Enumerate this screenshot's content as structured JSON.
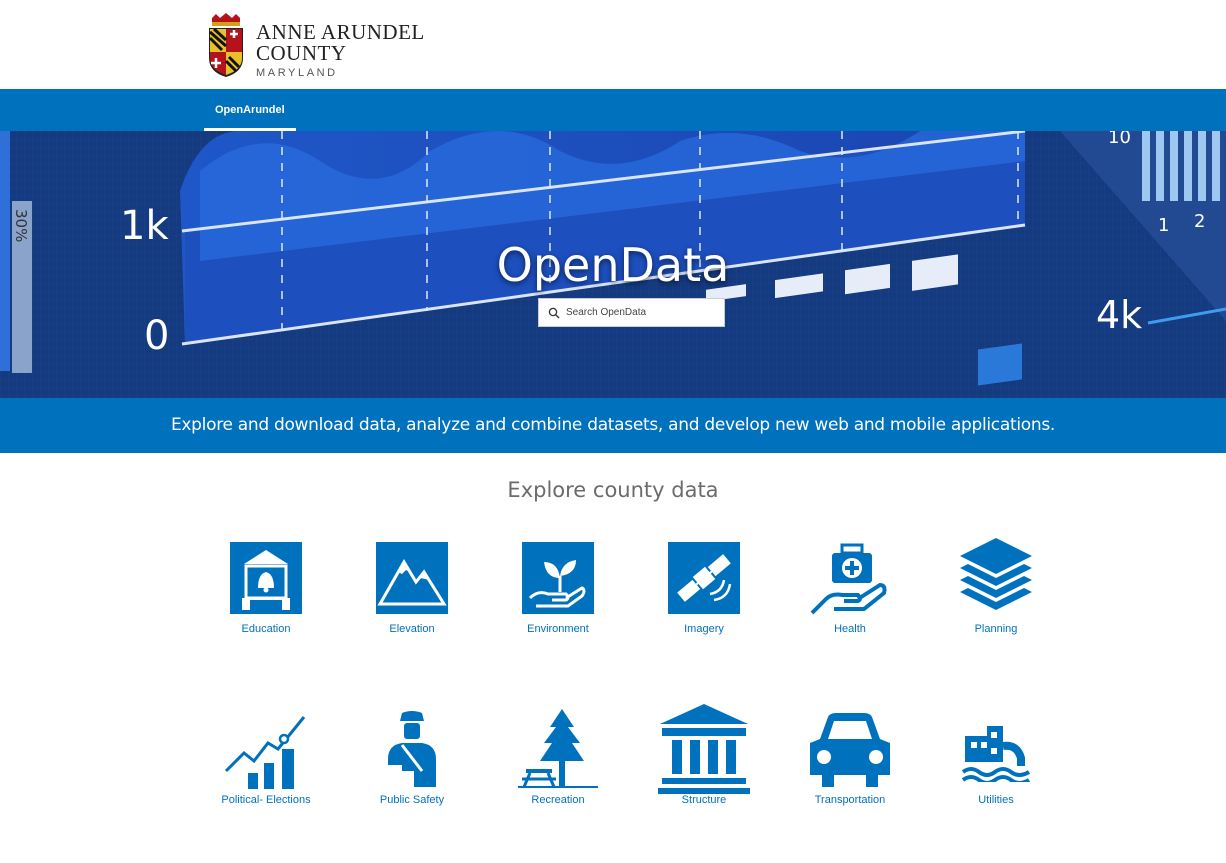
{
  "header": {
    "logo_line1": "ANNE ARUNDEL",
    "logo_line2": "COUNTY",
    "logo_line3": "MARYLAND"
  },
  "nav": {
    "tab_label": "OpenArundel"
  },
  "hero": {
    "title": "OpenData",
    "search_placeholder": "Search OpenData",
    "chart_labels": {
      "y_1k": "1k",
      "y_0": "0",
      "pct": "30%",
      "x_1": "1",
      "x_2": "2",
      "val_4k": "4k",
      "val_10": "10"
    }
  },
  "tagline": "Explore and download data, analyze and combine datasets, and develop new web and mobile applications.",
  "explore": {
    "heading": "Explore county data",
    "categories": [
      {
        "label": "Education",
        "icon": "school-bell-icon"
      },
      {
        "label": "Elevation",
        "icon": "mountain-icon"
      },
      {
        "label": "Environment",
        "icon": "plant-hand-icon"
      },
      {
        "label": "Imagery",
        "icon": "satellite-icon"
      },
      {
        "label": "Health",
        "icon": "medical-kit-hand-icon"
      },
      {
        "label": "Planning",
        "icon": "layers-icon"
      },
      {
        "label": "Political- Elections",
        "icon": "growth-chart-icon"
      },
      {
        "label": "Public Safety",
        "icon": "police-officer-icon"
      },
      {
        "label": "Recreation",
        "icon": "tree-picnic-icon"
      },
      {
        "label": "Structure",
        "icon": "building-columns-icon"
      },
      {
        "label": "Transportation",
        "icon": "car-icon"
      },
      {
        "label": "Utilities",
        "icon": "water-utility-icon"
      }
    ]
  },
  "colors": {
    "brand_blue": "#0071bc",
    "hero_dark": "#12326e"
  }
}
